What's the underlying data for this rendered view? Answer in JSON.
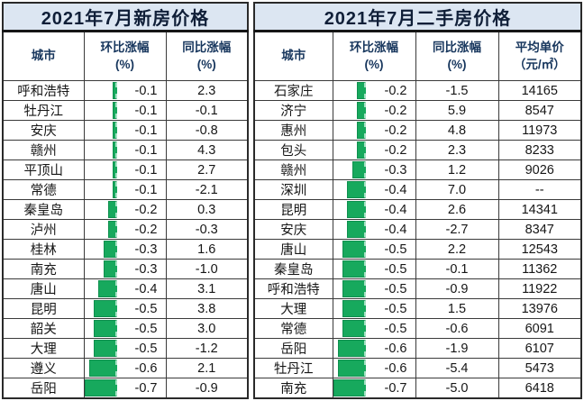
{
  "colors": {
    "title_bg": "#dce6f2",
    "title_text": "#101f38",
    "header_text": "#17365d",
    "bar_green": "#17a95d",
    "bar_border": "#0f8f4e",
    "grid_line": "#3a3a3a"
  },
  "headers": {
    "city": "城市",
    "mom_l1": "环比涨幅",
    "mom_l2": "(%)",
    "yoy_l1": "同比涨幅",
    "yoy_l2": "(%)",
    "price_l1": "平均单价",
    "price_l2": "（元/㎡）"
  },
  "left_table": {
    "title": "2021年7月新房价格",
    "rows": [
      {
        "city": "呼和浩特",
        "mom": "-0.1",
        "yoy": "2.3"
      },
      {
        "city": "牡丹江",
        "mom": "-0.1",
        "yoy": "-0.1"
      },
      {
        "city": "安庆",
        "mom": "-0.1",
        "yoy": "-0.8"
      },
      {
        "city": "赣州",
        "mom": "-0.1",
        "yoy": "4.3"
      },
      {
        "city": "平顶山",
        "mom": "-0.1",
        "yoy": "2.7"
      },
      {
        "city": "常德",
        "mom": "-0.1",
        "yoy": "-2.1"
      },
      {
        "city": "秦皇岛",
        "mom": "-0.2",
        "yoy": "0.3"
      },
      {
        "city": "泸州",
        "mom": "-0.2",
        "yoy": "-0.3"
      },
      {
        "city": "桂林",
        "mom": "-0.3",
        "yoy": "1.6"
      },
      {
        "city": "南充",
        "mom": "-0.3",
        "yoy": "-1.0"
      },
      {
        "city": "唐山",
        "mom": "-0.4",
        "yoy": "3.1"
      },
      {
        "city": "昆明",
        "mom": "-0.5",
        "yoy": "3.8"
      },
      {
        "city": "韶关",
        "mom": "-0.5",
        "yoy": "3.0"
      },
      {
        "city": "大理",
        "mom": "-0.5",
        "yoy": "-1.2"
      },
      {
        "city": "遵义",
        "mom": "-0.6",
        "yoy": "2.1"
      },
      {
        "city": "岳阳",
        "mom": "-0.7",
        "yoy": "-0.9"
      }
    ]
  },
  "right_table": {
    "title": "2021年7月二手房价格",
    "rows": [
      {
        "city": "石家庄",
        "mom": "-0.2",
        "yoy": "-1.5",
        "price": "14165"
      },
      {
        "city": "济宁",
        "mom": "-0.2",
        "yoy": "5.9",
        "price": "8547"
      },
      {
        "city": "惠州",
        "mom": "-0.2",
        "yoy": "4.8",
        "price": "11973"
      },
      {
        "city": "包头",
        "mom": "-0.2",
        "yoy": "2.3",
        "price": "8233"
      },
      {
        "city": "赣州",
        "mom": "-0.3",
        "yoy": "1.2",
        "price": "9026"
      },
      {
        "city": "深圳",
        "mom": "-0.4",
        "yoy": "7.0",
        "price": "--"
      },
      {
        "city": "昆明",
        "mom": "-0.4",
        "yoy": "2.6",
        "price": "14341"
      },
      {
        "city": "安庆",
        "mom": "-0.4",
        "yoy": "-2.7",
        "price": "8347"
      },
      {
        "city": "唐山",
        "mom": "-0.5",
        "yoy": "2.2",
        "price": "12543"
      },
      {
        "city": "秦皇岛",
        "mom": "-0.5",
        "yoy": "-0.1",
        "price": "11362"
      },
      {
        "city": "呼和浩特",
        "mom": "-0.5",
        "yoy": "-0.9",
        "price": "11922"
      },
      {
        "city": "大理",
        "mom": "-0.5",
        "yoy": "1.5",
        "price": "13976"
      },
      {
        "city": "常德",
        "mom": "-0.5",
        "yoy": "-0.6",
        "price": "6091"
      },
      {
        "city": "岳阳",
        "mom": "-0.6",
        "yoy": "-1.9",
        "price": "6107"
      },
      {
        "city": "牡丹江",
        "mom": "-0.6",
        "yoy": "-5.4",
        "price": "5473"
      },
      {
        "city": "南充",
        "mom": "-0.7",
        "yoy": "-5.0",
        "price": "6418"
      }
    ]
  },
  "chart_data": [
    {
      "type": "table",
      "title": "2021年7月新房价格",
      "columns": [
        "城市",
        "环比涨幅(%)",
        "同比涨幅(%)"
      ],
      "bar_column": "环比涨幅(%)",
      "bar_axis_range": [
        -0.7,
        0
      ],
      "rows": [
        [
          "呼和浩特",
          -0.1,
          2.3
        ],
        [
          "牡丹江",
          -0.1,
          -0.1
        ],
        [
          "安庆",
          -0.1,
          -0.8
        ],
        [
          "赣州",
          -0.1,
          4.3
        ],
        [
          "平顶山",
          -0.1,
          2.7
        ],
        [
          "常德",
          -0.1,
          -2.1
        ],
        [
          "秦皇岛",
          -0.2,
          0.3
        ],
        [
          "泸州",
          -0.2,
          -0.3
        ],
        [
          "桂林",
          -0.3,
          1.6
        ],
        [
          "南充",
          -0.3,
          -1.0
        ],
        [
          "唐山",
          -0.4,
          3.1
        ],
        [
          "昆明",
          -0.5,
          3.8
        ],
        [
          "韶关",
          -0.5,
          3.0
        ],
        [
          "大理",
          -0.5,
          -1.2
        ],
        [
          "遵义",
          -0.6,
          2.1
        ],
        [
          "岳阳",
          -0.7,
          -0.9
        ]
      ]
    },
    {
      "type": "table",
      "title": "2021年7月二手房价格",
      "columns": [
        "城市",
        "环比涨幅(%)",
        "同比涨幅(%)",
        "平均单价(元/㎡)"
      ],
      "bar_column": "环比涨幅(%)",
      "bar_axis_range": [
        -0.7,
        0
      ],
      "rows": [
        [
          "石家庄",
          -0.2,
          -1.5,
          14165
        ],
        [
          "济宁",
          -0.2,
          5.9,
          8547
        ],
        [
          "惠州",
          -0.2,
          4.8,
          11973
        ],
        [
          "包头",
          -0.2,
          2.3,
          8233
        ],
        [
          "赣州",
          -0.3,
          1.2,
          9026
        ],
        [
          "深圳",
          -0.4,
          7.0,
          null
        ],
        [
          "昆明",
          -0.4,
          2.6,
          14341
        ],
        [
          "安庆",
          -0.4,
          -2.7,
          8347
        ],
        [
          "唐山",
          -0.5,
          2.2,
          12543
        ],
        [
          "秦皇岛",
          -0.5,
          -0.1,
          11362
        ],
        [
          "呼和浩特",
          -0.5,
          -0.9,
          11922
        ],
        [
          "大理",
          -0.5,
          1.5,
          13976
        ],
        [
          "常德",
          -0.5,
          -0.6,
          6091
        ],
        [
          "岳阳",
          -0.6,
          -1.9,
          6107
        ],
        [
          "牡丹江",
          -0.6,
          -5.4,
          5473
        ],
        [
          "南充",
          -0.7,
          -5.0,
          6418
        ]
      ]
    }
  ]
}
